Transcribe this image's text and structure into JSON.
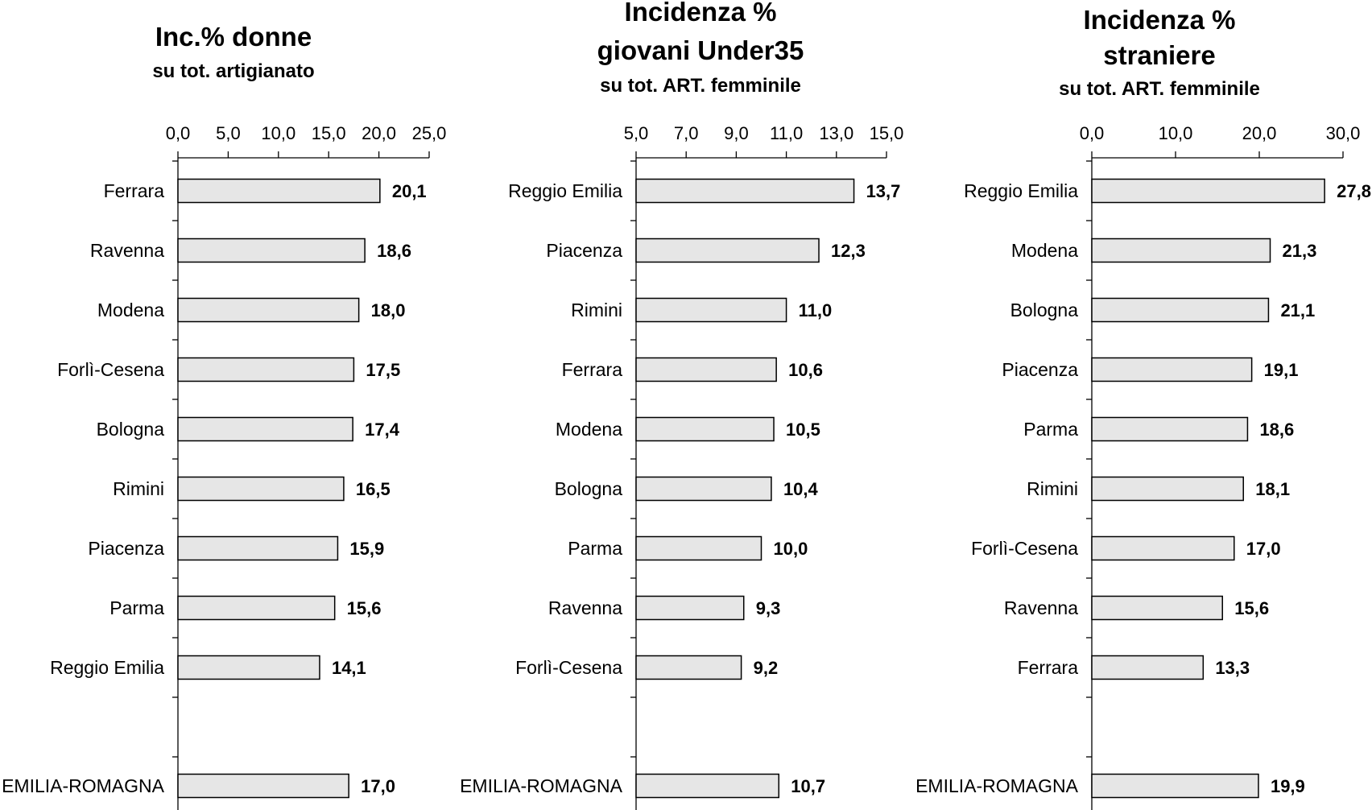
{
  "chart_data": [
    {
      "type": "bar",
      "orientation": "horizontal",
      "title": "Inc.% donne",
      "subtitle": "su tot. artigianato",
      "xlim": [
        0,
        25
      ],
      "ticks": [
        "0,0",
        "5,0",
        "10,0",
        "15,0",
        "20,0",
        "25,0"
      ],
      "tick_values": [
        0,
        5,
        10,
        15,
        20,
        25
      ],
      "categories": [
        "Ferrara",
        "Ravenna",
        "Modena",
        "Forlì-Cesena",
        "Bologna",
        "Rimini",
        "Piacenza",
        "Parma",
        "Reggio Emilia"
      ],
      "values": [
        20.1,
        18.6,
        18.0,
        17.5,
        17.4,
        16.5,
        15.9,
        15.6,
        14.1
      ],
      "value_labels": [
        "20,1",
        "18,6",
        "18,0",
        "17,5",
        "17,4",
        "16,5",
        "15,9",
        "15,6",
        "14,1"
      ],
      "total": {
        "category": "EMILIA-ROMAGNA",
        "value": 17.0,
        "label": "17,0"
      }
    },
    {
      "type": "bar",
      "orientation": "horizontal",
      "title": [
        "Incidenza %",
        "giovani Under35"
      ],
      "subtitle": "su tot. ART. femminile",
      "xlim": [
        5,
        15
      ],
      "ticks": [
        "5,0",
        "7,0",
        "9,0",
        "11,0",
        "13,0",
        "15,0"
      ],
      "tick_values": [
        5,
        7,
        9,
        11,
        13,
        15
      ],
      "categories": [
        "Reggio Emilia",
        "Piacenza",
        "Rimini",
        "Ferrara",
        "Modena",
        "Bologna",
        "Parma",
        "Ravenna",
        "Forlì-Cesena"
      ],
      "values": [
        13.7,
        12.3,
        11.0,
        10.6,
        10.5,
        10.4,
        10.0,
        9.3,
        9.2
      ],
      "value_labels": [
        "13,7",
        "12,3",
        "11,0",
        "10,6",
        "10,5",
        "10,4",
        "10,0",
        "9,3",
        "9,2"
      ],
      "total": {
        "category": "EMILIA-ROMAGNA",
        "value": 10.7,
        "label": "10,7"
      }
    },
    {
      "type": "bar",
      "orientation": "horizontal",
      "title": [
        "Incidenza %",
        "straniere"
      ],
      "subtitle": "su tot. ART. femminile",
      "xlim": [
        0,
        30
      ],
      "ticks": [
        "0,0",
        "10,0",
        "20,0",
        "30,0"
      ],
      "tick_values": [
        0,
        10,
        20,
        30
      ],
      "categories": [
        "Reggio Emilia",
        "Modena",
        "Bologna",
        "Piacenza",
        "Parma",
        "Rimini",
        "Forlì-Cesena",
        "Ravenna",
        "Ferrara"
      ],
      "values": [
        27.8,
        21.3,
        21.1,
        19.1,
        18.6,
        18.1,
        17.0,
        15.6,
        13.3
      ],
      "value_labels": [
        "27,8",
        "21,3",
        "21,1",
        "19,1",
        "18,6",
        "18,1",
        "17,0",
        "15,6",
        "13,3"
      ],
      "total": {
        "category": "EMILIA-ROMAGNA",
        "value": 19.9,
        "label": "19,9"
      }
    }
  ]
}
